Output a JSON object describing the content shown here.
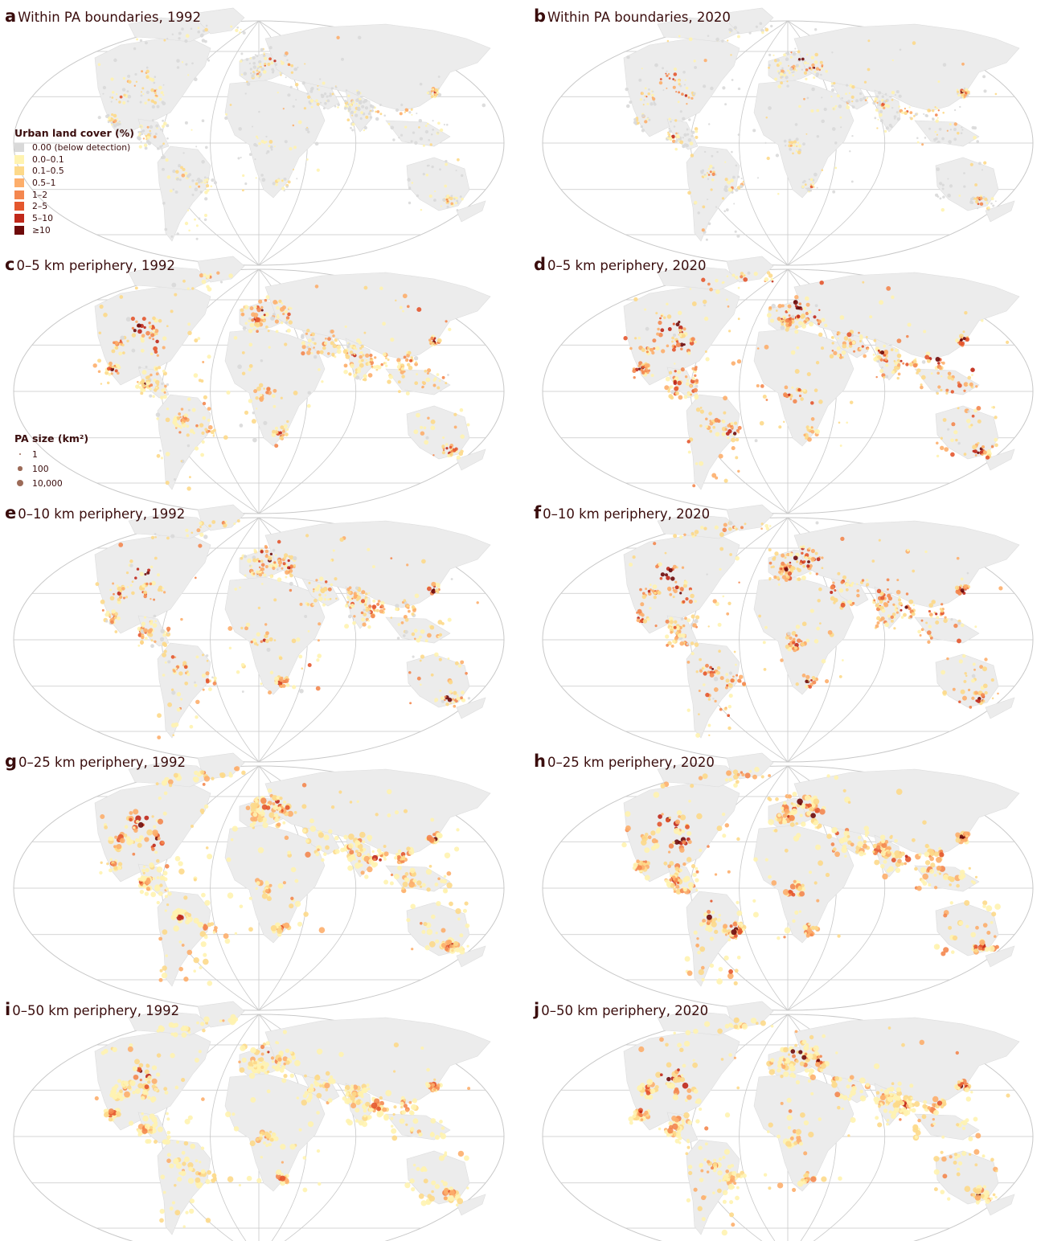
{
  "figure": {
    "panels": [
      {
        "letter": "a",
        "title": "Within PA boundaries, 1992",
        "buffer": 0,
        "year": 1992
      },
      {
        "letter": "b",
        "title": "Within PA boundaries, 2020",
        "buffer": 0,
        "year": 2020
      },
      {
        "letter": "c",
        "title": "0–5 km periphery, 1992",
        "buffer": 5,
        "year": 1992
      },
      {
        "letter": "d",
        "title": "0–5 km periphery, 2020",
        "buffer": 5,
        "year": 2020
      },
      {
        "letter": "e",
        "title": "0–10 km periphery, 1992",
        "buffer": 10,
        "year": 1992
      },
      {
        "letter": "f",
        "title": "0–10 km periphery, 2020",
        "buffer": 10,
        "year": 2020
      },
      {
        "letter": "g",
        "title": "0–25 km periphery, 1992",
        "buffer": 25,
        "year": 1992
      },
      {
        "letter": "h",
        "title": "0–25 km periphery, 2020",
        "buffer": 25,
        "year": 2020
      },
      {
        "letter": "i",
        "title": "0–50 km periphery, 1992",
        "buffer": 50,
        "year": 1992
      },
      {
        "letter": "j",
        "title": "0–50 km periphery, 2020",
        "buffer": 50,
        "year": 2020
      }
    ]
  },
  "legend_urban": {
    "title": "Urban land cover (%)",
    "classes": [
      {
        "label": "0.00  (below detection)",
        "color": "#d9d9d9"
      },
      {
        "label": "0.0–0.1",
        "color": "#fff3b0"
      },
      {
        "label": "0.1–0.5",
        "color": "#fdd98a"
      },
      {
        "label": "0.5–1",
        "color": "#fdae6b"
      },
      {
        "label": "1–2",
        "color": "#f4874f"
      },
      {
        "label": "2–5",
        "color": "#e4572e"
      },
      {
        "label": "5–10",
        "color": "#c0281a"
      },
      {
        "label": "≥10",
        "color": "#6e0a0a"
      }
    ]
  },
  "legend_size": {
    "title": "PA size (km²)",
    "items": [
      {
        "label": "1",
        "value": 1
      },
      {
        "label": "100",
        "value": 100
      },
      {
        "label": "10,000",
        "value": 10000
      }
    ],
    "dot_color": "#9c6b58"
  },
  "colors": {
    "land": "#ececec",
    "graticule": "#c8c8c8",
    "text": "#3a0d0d"
  }
}
